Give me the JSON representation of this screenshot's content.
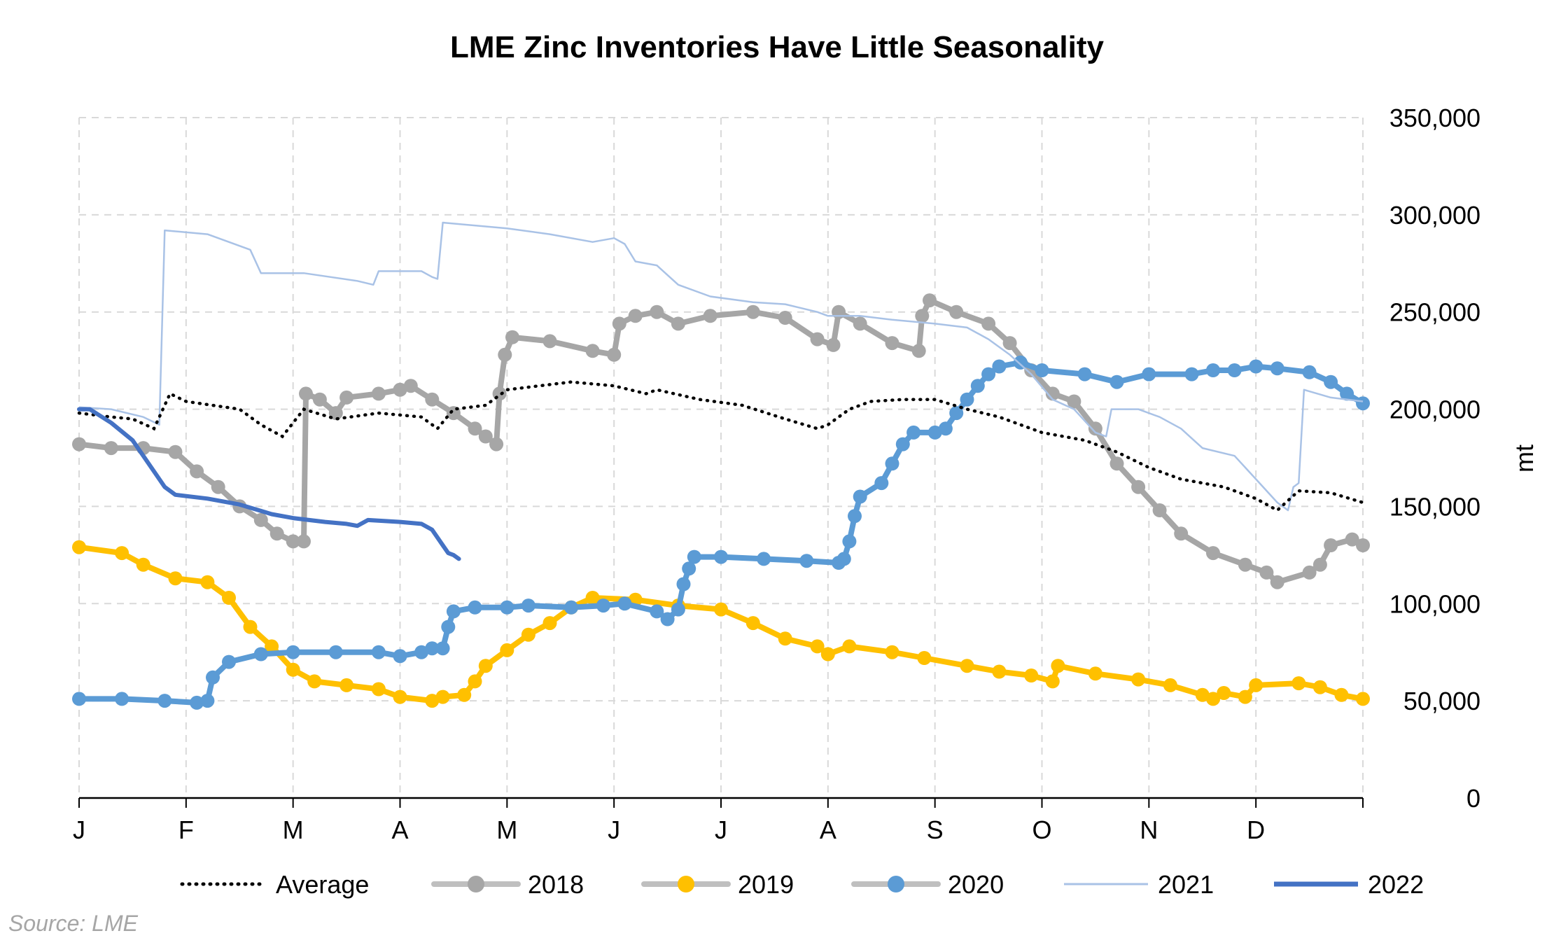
{
  "chart_data": {
    "type": "line",
    "title": "LME Zinc Inventories Have Little Seasonality",
    "ylabel": "mt",
    "xlabel": "",
    "ylim": [
      0,
      350000
    ],
    "yticks": [
      "0",
      "50,000",
      "100,000",
      "150,000",
      "200,000",
      "250,000",
      "300,000",
      "350,000"
    ],
    "x_range": [
      0,
      12
    ],
    "categories": [
      "J",
      "F",
      "M",
      "A",
      "M",
      "J",
      "J",
      "A",
      "S",
      "O",
      "N",
      "D"
    ],
    "grid": true,
    "legend_position": "bottom",
    "source": "Source: LME",
    "series": [
      {
        "name": "Average",
        "color": "#000000",
        "style": "dotted",
        "points": [
          [
            0,
            198000
          ],
          [
            0.3,
            196000
          ],
          [
            0.5,
            195000
          ],
          [
            0.7,
            190000
          ],
          [
            0.85,
            208000
          ],
          [
            1.0,
            204000
          ],
          [
            1.5,
            200000
          ],
          [
            1.7,
            192000
          ],
          [
            1.9,
            186000
          ],
          [
            2.1,
            200000
          ],
          [
            2.4,
            195000
          ],
          [
            2.8,
            198000
          ],
          [
            3.2,
            196000
          ],
          [
            3.35,
            190000
          ],
          [
            3.5,
            200000
          ],
          [
            3.8,
            202000
          ],
          [
            4.0,
            210000
          ],
          [
            4.3,
            212000
          ],
          [
            4.6,
            214000
          ],
          [
            5.0,
            212000
          ],
          [
            5.3,
            208000
          ],
          [
            5.4,
            210000
          ],
          [
            5.8,
            205000
          ],
          [
            6.2,
            202000
          ],
          [
            6.6,
            195000
          ],
          [
            6.9,
            190000
          ],
          [
            7.0,
            192000
          ],
          [
            7.2,
            200000
          ],
          [
            7.4,
            204000
          ],
          [
            7.7,
            205000
          ],
          [
            8.0,
            205000
          ],
          [
            8.3,
            200000
          ],
          [
            8.6,
            196000
          ],
          [
            9.0,
            188000
          ],
          [
            9.4,
            184000
          ],
          [
            9.7,
            178000
          ],
          [
            10.0,
            170000
          ],
          [
            10.3,
            164000
          ],
          [
            10.7,
            160000
          ],
          [
            11.0,
            154000
          ],
          [
            11.2,
            148000
          ],
          [
            11.4,
            158000
          ],
          [
            11.7,
            157000
          ],
          [
            12.0,
            152000
          ]
        ]
      },
      {
        "name": "2018",
        "color": "#a6a6a6",
        "style": "markers",
        "points": [
          [
            0,
            182000
          ],
          [
            0.3,
            180000
          ],
          [
            0.6,
            180000
          ],
          [
            0.9,
            178000
          ],
          [
            1.1,
            168000
          ],
          [
            1.3,
            160000
          ],
          [
            1.5,
            150000
          ],
          [
            1.7,
            143000
          ],
          [
            1.85,
            136000
          ],
          [
            2.0,
            132000
          ],
          [
            2.1,
            132000
          ],
          [
            2.12,
            208000
          ],
          [
            2.25,
            205000
          ],
          [
            2.4,
            198000
          ],
          [
            2.5,
            206000
          ],
          [
            2.8,
            208000
          ],
          [
            3.0,
            210000
          ],
          [
            3.1,
            212000
          ],
          [
            3.3,
            205000
          ],
          [
            3.5,
            198000
          ],
          [
            3.7,
            190000
          ],
          [
            3.8,
            186000
          ],
          [
            3.9,
            182000
          ],
          [
            3.93,
            208000
          ],
          [
            3.98,
            228000
          ],
          [
            4.05,
            237000
          ],
          [
            4.4,
            235000
          ],
          [
            4.8,
            230000
          ],
          [
            5.0,
            228000
          ],
          [
            5.05,
            244000
          ],
          [
            5.2,
            248000
          ],
          [
            5.4,
            250000
          ],
          [
            5.6,
            244000
          ],
          [
            5.9,
            248000
          ],
          [
            6.3,
            250000
          ],
          [
            6.6,
            247000
          ],
          [
            6.9,
            236000
          ],
          [
            7.05,
            233000
          ],
          [
            7.1,
            250000
          ],
          [
            7.3,
            244000
          ],
          [
            7.6,
            234000
          ],
          [
            7.85,
            230000
          ],
          [
            7.88,
            248000
          ],
          [
            7.95,
            256000
          ],
          [
            8.2,
            250000
          ],
          [
            8.5,
            244000
          ],
          [
            8.7,
            234000
          ],
          [
            8.9,
            220000
          ],
          [
            9.1,
            208000
          ],
          [
            9.3,
            204000
          ],
          [
            9.5,
            190000
          ],
          [
            9.7,
            172000
          ],
          [
            9.9,
            160000
          ],
          [
            10.1,
            148000
          ],
          [
            10.3,
            136000
          ],
          [
            10.6,
            126000
          ],
          [
            10.9,
            120000
          ],
          [
            11.1,
            116000
          ],
          [
            11.2,
            111000
          ],
          [
            11.5,
            116000
          ],
          [
            11.6,
            120000
          ],
          [
            11.7,
            130000
          ],
          [
            11.9,
            133000
          ],
          [
            12.0,
            130000
          ]
        ]
      },
      {
        "name": "2019",
        "color": "#ffc000",
        "style": "markers",
        "points": [
          [
            0,
            129000
          ],
          [
            0.4,
            126000
          ],
          [
            0.6,
            120000
          ],
          [
            0.9,
            113000
          ],
          [
            1.2,
            111000
          ],
          [
            1.4,
            103000
          ],
          [
            1.6,
            88000
          ],
          [
            1.8,
            78000
          ],
          [
            2.0,
            66000
          ],
          [
            2.2,
            60000
          ],
          [
            2.5,
            58000
          ],
          [
            2.8,
            56000
          ],
          [
            3.0,
            52000
          ],
          [
            3.3,
            50000
          ],
          [
            3.4,
            52000
          ],
          [
            3.6,
            53000
          ],
          [
            3.7,
            60000
          ],
          [
            3.8,
            68000
          ],
          [
            4.0,
            76000
          ],
          [
            4.2,
            84000
          ],
          [
            4.4,
            90000
          ],
          [
            4.6,
            98000
          ],
          [
            4.8,
            103000
          ],
          [
            5.2,
            102000
          ],
          [
            5.6,
            99000
          ],
          [
            6.0,
            97000
          ],
          [
            6.3,
            90000
          ],
          [
            6.6,
            82000
          ],
          [
            6.9,
            78000
          ],
          [
            7.0,
            74000
          ],
          [
            7.2,
            78000
          ],
          [
            7.6,
            75000
          ],
          [
            7.9,
            72000
          ],
          [
            8.3,
            68000
          ],
          [
            8.6,
            65000
          ],
          [
            8.9,
            63000
          ],
          [
            9.1,
            60000
          ],
          [
            9.15,
            68000
          ],
          [
            9.5,
            64000
          ],
          [
            9.9,
            61000
          ],
          [
            10.2,
            58000
          ],
          [
            10.5,
            53000
          ],
          [
            10.6,
            51000
          ],
          [
            10.7,
            54000
          ],
          [
            10.9,
            52000
          ],
          [
            11.0,
            58000
          ],
          [
            11.4,
            59000
          ],
          [
            11.6,
            57000
          ],
          [
            11.8,
            53000
          ],
          [
            12.0,
            51000
          ]
        ]
      },
      {
        "name": "2020",
        "color": "#5b9bd5",
        "style": "markers",
        "points": [
          [
            0,
            51000
          ],
          [
            0.4,
            51000
          ],
          [
            0.8,
            50000
          ],
          [
            1.1,
            49000
          ],
          [
            1.2,
            50000
          ],
          [
            1.25,
            62000
          ],
          [
            1.4,
            70000
          ],
          [
            1.7,
            74000
          ],
          [
            2.0,
            75000
          ],
          [
            2.4,
            75000
          ],
          [
            2.8,
            75000
          ],
          [
            3.0,
            73000
          ],
          [
            3.2,
            75000
          ],
          [
            3.3,
            77000
          ],
          [
            3.4,
            77000
          ],
          [
            3.45,
            88000
          ],
          [
            3.5,
            96000
          ],
          [
            3.7,
            98000
          ],
          [
            4.0,
            98000
          ],
          [
            4.2,
            99000
          ],
          [
            4.6,
            98000
          ],
          [
            4.9,
            99000
          ],
          [
            5.1,
            100000
          ],
          [
            5.4,
            96000
          ],
          [
            5.5,
            92000
          ],
          [
            5.6,
            97000
          ],
          [
            5.65,
            110000
          ],
          [
            5.7,
            118000
          ],
          [
            5.75,
            124000
          ],
          [
            6.0,
            124000
          ],
          [
            6.4,
            123000
          ],
          [
            6.8,
            122000
          ],
          [
            7.1,
            121000
          ],
          [
            7.15,
            123000
          ],
          [
            7.2,
            132000
          ],
          [
            7.25,
            145000
          ],
          [
            7.3,
            155000
          ],
          [
            7.5,
            162000
          ],
          [
            7.6,
            172000
          ],
          [
            7.7,
            182000
          ],
          [
            7.8,
            188000
          ],
          [
            8.0,
            188000
          ],
          [
            8.1,
            190000
          ],
          [
            8.2,
            198000
          ],
          [
            8.3,
            205000
          ],
          [
            8.4,
            212000
          ],
          [
            8.5,
            218000
          ],
          [
            8.6,
            222000
          ],
          [
            8.8,
            224000
          ],
          [
            9.0,
            220000
          ],
          [
            9.4,
            218000
          ],
          [
            9.7,
            214000
          ],
          [
            10.0,
            218000
          ],
          [
            10.4,
            218000
          ],
          [
            10.6,
            220000
          ],
          [
            10.8,
            220000
          ],
          [
            11.0,
            222000
          ],
          [
            11.2,
            221000
          ],
          [
            11.5,
            219000
          ],
          [
            11.7,
            214000
          ],
          [
            11.85,
            208000
          ],
          [
            12.0,
            203000
          ]
        ]
      },
      {
        "name": "2021",
        "color": "#a9c2e6",
        "style": "thin",
        "points": [
          [
            0,
            201000
          ],
          [
            0.3,
            200000
          ],
          [
            0.6,
            196000
          ],
          [
            0.75,
            192000
          ],
          [
            0.8,
            292000
          ],
          [
            1.2,
            290000
          ],
          [
            1.6,
            282000
          ],
          [
            1.7,
            270000
          ],
          [
            2.1,
            270000
          ],
          [
            2.6,
            266000
          ],
          [
            2.75,
            264000
          ],
          [
            2.8,
            271000
          ],
          [
            3.2,
            271000
          ],
          [
            3.3,
            268000
          ],
          [
            3.35,
            267000
          ],
          [
            3.4,
            296000
          ],
          [
            4.0,
            293000
          ],
          [
            4.4,
            290000
          ],
          [
            4.8,
            286000
          ],
          [
            5.0,
            288000
          ],
          [
            5.1,
            285000
          ],
          [
            5.2,
            276000
          ],
          [
            5.4,
            274000
          ],
          [
            5.6,
            264000
          ],
          [
            5.9,
            258000
          ],
          [
            6.3,
            255000
          ],
          [
            6.6,
            254000
          ],
          [
            6.9,
            250000
          ],
          [
            7.0,
            248000
          ],
          [
            7.3,
            248000
          ],
          [
            7.6,
            246000
          ],
          [
            8.0,
            244000
          ],
          [
            8.3,
            242000
          ],
          [
            8.5,
            236000
          ],
          [
            8.7,
            228000
          ],
          [
            8.9,
            218000
          ],
          [
            9.1,
            205000
          ],
          [
            9.3,
            200000
          ],
          [
            9.5,
            188000
          ],
          [
            9.6,
            186000
          ],
          [
            9.65,
            200000
          ],
          [
            9.9,
            200000
          ],
          [
            10.1,
            196000
          ],
          [
            10.3,
            190000
          ],
          [
            10.5,
            180000
          ],
          [
            10.8,
            176000
          ],
          [
            11.0,
            164000
          ],
          [
            11.2,
            152000
          ],
          [
            11.3,
            148000
          ],
          [
            11.35,
            160000
          ],
          [
            11.4,
            162000
          ],
          [
            11.45,
            210000
          ],
          [
            11.7,
            206000
          ],
          [
            12.0,
            204000
          ]
        ]
      },
      {
        "name": "2022",
        "color": "#4472c4",
        "style": "thick",
        "points": [
          [
            0,
            200000
          ],
          [
            0.1,
            200000
          ],
          [
            0.3,
            193000
          ],
          [
            0.5,
            184000
          ],
          [
            0.7,
            168000
          ],
          [
            0.8,
            160000
          ],
          [
            0.9,
            156000
          ],
          [
            1.2,
            154000
          ],
          [
            1.5,
            151000
          ],
          [
            1.8,
            146000
          ],
          [
            2.0,
            144000
          ],
          [
            2.3,
            142000
          ],
          [
            2.5,
            141000
          ],
          [
            2.6,
            140000
          ],
          [
            2.7,
            143000
          ],
          [
            3.0,
            142000
          ],
          [
            3.2,
            141000
          ],
          [
            3.3,
            138000
          ],
          [
            3.4,
            130000
          ],
          [
            3.45,
            126000
          ],
          [
            3.5,
            125000
          ],
          [
            3.55,
            123000
          ]
        ]
      }
    ]
  }
}
